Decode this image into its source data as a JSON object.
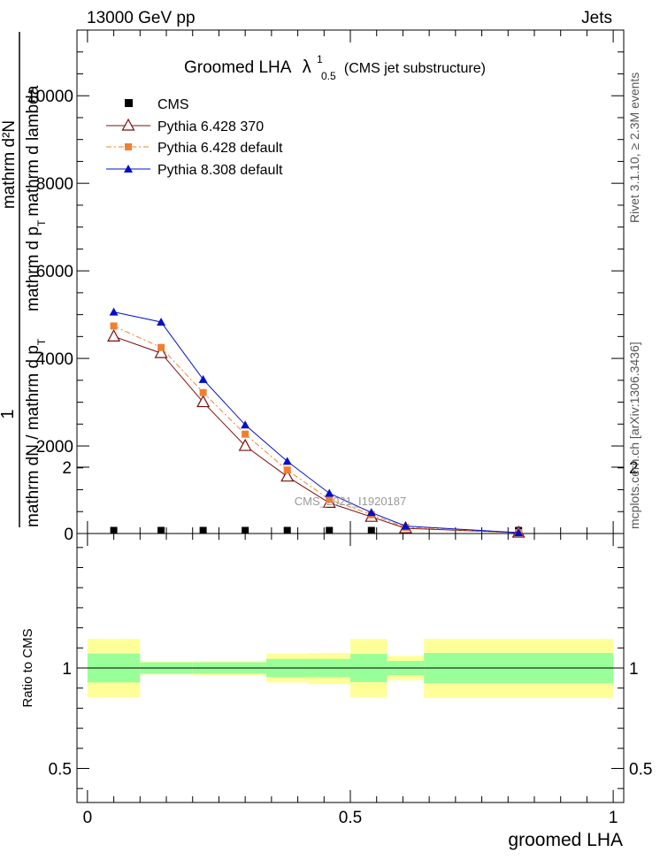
{
  "header": {
    "left": "13000 GeV pp",
    "right": "Jets"
  },
  "side_labels": {
    "rivet": "Rivet 3.1.10, ≥ 2.3M events",
    "mcplots": "mcplots.cern.ch [arXiv:1306.3436]"
  },
  "watermark": "CMS_2021_I1920187",
  "chart_data": [
    {
      "type": "line",
      "title_main": "Groomed LHA",
      "title_lambda": "λ",
      "title_sup": "1",
      "title_sub": "0.5",
      "title_suffix": "(CMS jet substructure)",
      "xlabel": "groomed LHA",
      "ylabel": {
        "numerator": "1",
        "denominator": "mathrm dN / mathrm d p",
        "denominator_sub": "T",
        "upper": "mathrm d²N",
        "upper_denominator": "mathrm d p",
        "upper_denominator_sub": "T",
        "upper_denominator_tail": "mathrm d lambda"
      },
      "xlim": [
        -0.02,
        1.02
      ],
      "ylim": [
        0,
        11500
      ],
      "yticks": [
        0,
        2000,
        4000,
        6000,
        8000,
        10000
      ],
      "ytick_labels": [
        "0",
        "2000",
        "4000",
        "6000",
        "8000",
        "10000"
      ],
      "grid": false,
      "legend_position": "top-left",
      "series": [
        {
          "name": "CMS",
          "color": "#000000",
          "marker": "square",
          "x": [
            0.05,
            0.14,
            0.22,
            0.3,
            0.38,
            0.46,
            0.54,
            0.605,
            0.82
          ],
          "y": [
            30,
            30,
            30,
            30,
            30,
            30,
            30,
            30,
            30
          ]
        },
        {
          "name": "Pythia 6.428 370",
          "color": "#7a0f0f",
          "marker": "open-triangle",
          "dash": "",
          "x": [
            0.05,
            0.14,
            0.22,
            0.3,
            0.38,
            0.46,
            0.54,
            0.605,
            0.82
          ],
          "y": [
            4500,
            4120,
            3000,
            2000,
            1300,
            700,
            380,
            120,
            20
          ]
        },
        {
          "name": "Pythia 6.428 default",
          "color": "#f08030",
          "marker": "square",
          "dash": "6,3,2,3",
          "x": [
            0.05,
            0.14,
            0.22,
            0.3,
            0.38,
            0.46,
            0.54,
            0.605,
            0.82
          ],
          "y": [
            4740,
            4250,
            3220,
            2270,
            1450,
            780,
            430,
            140,
            20
          ]
        },
        {
          "name": "Pythia 8.308 default",
          "color": "#0010c8",
          "marker": "triangle",
          "dash": "",
          "x": [
            0.05,
            0.14,
            0.22,
            0.3,
            0.38,
            0.46,
            0.54,
            0.605,
            0.82
          ],
          "y": [
            5060,
            4830,
            3520,
            2480,
            1650,
            920,
            480,
            170,
            20
          ]
        }
      ]
    },
    {
      "type": "area",
      "ylabel": "Ratio to CMS",
      "xlabel": "groomed LHA",
      "xlim": [
        -0.02,
        1.02
      ],
      "ylim": [
        0.33,
        2.3
      ],
      "yticks": [
        0.5,
        1,
        2
      ],
      "ytick_labels": [
        "0.5",
        "1",
        "2"
      ],
      "xticks": [
        0,
        0.5,
        1
      ],
      "xtick_labels": [
        "0",
        "0.5",
        "1"
      ],
      "reference_line": 1,
      "bins": [
        {
          "x0": 0.0,
          "x1": 0.1,
          "inner": [
            0.928,
            1.072
          ],
          "outer": [
            0.855,
            1.145
          ]
        },
        {
          "x0": 0.1,
          "x1": 0.2,
          "inner": [
            0.972,
            1.028
          ],
          "outer": [
            0.968,
            1.032
          ]
        },
        {
          "x0": 0.2,
          "x1": 0.34,
          "inner": [
            0.972,
            1.028
          ],
          "outer": [
            0.965,
            1.035
          ]
        },
        {
          "x0": 0.34,
          "x1": 0.42,
          "inner": [
            0.955,
            1.045
          ],
          "outer": [
            0.928,
            1.072
          ]
        },
        {
          "x0": 0.42,
          "x1": 0.5,
          "inner": [
            0.955,
            1.045
          ],
          "outer": [
            0.92,
            1.075
          ]
        },
        {
          "x0": 0.5,
          "x1": 0.57,
          "inner": [
            0.93,
            1.07
          ],
          "outer": [
            0.855,
            1.145
          ]
        },
        {
          "x0": 0.57,
          "x1": 0.64,
          "inner": [
            0.965,
            1.035
          ],
          "outer": [
            0.94,
            1.06
          ]
        },
        {
          "x0": 0.64,
          "x1": 1.0,
          "inner": [
            0.925,
            1.075
          ],
          "outer": [
            0.85,
            1.145
          ]
        }
      ],
      "inner_color": "#99ff99",
      "outer_color": "#ffff99"
    }
  ]
}
